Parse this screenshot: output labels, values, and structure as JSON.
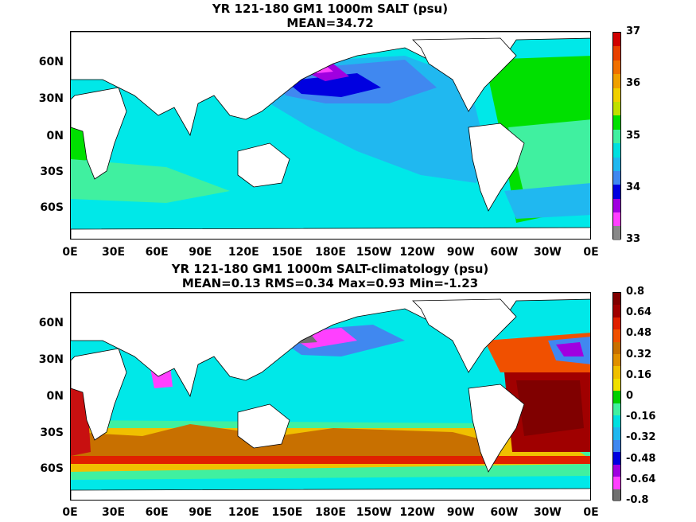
{
  "panel1": {
    "title": "YR 121-180 GM1 1000m SALT (psu)",
    "subtitle": "MEAN=34.72",
    "colorbar_labels": [
      "37",
      "36",
      "35",
      "34",
      "33"
    ],
    "colorbar_colors": [
      "#d00000",
      "#e84000",
      "#f07000",
      "#f0a000",
      "#f0d000",
      "#c0e000",
      "#00e000",
      "#40f0a0",
      "#00e0e0",
      "#20b8f0",
      "#4088f0",
      "#0000e0",
      "#a000e0",
      "#ff40ff",
      "#888888"
    ]
  },
  "panel2": {
    "title": "YR 121-180 GM1 1000m SALT-climatology (psu)",
    "subtitle": "MEAN=0.13   RMS=0.34   Max=0.93   Min=-1.23",
    "colorbar_labels": [
      "0.8",
      "0.64",
      "0.48",
      "0.32",
      "0.16",
      "0",
      "-0.16",
      "-0.32",
      "-0.48",
      "-0.64",
      "-0.8"
    ],
    "colorbar_colors": [
      "#800000",
      "#a00000",
      "#e02000",
      "#f05000",
      "#c87000",
      "#e09000",
      "#f0c000",
      "#f0e000",
      "#00d000",
      "#40f0a0",
      "#00e0e0",
      "#20b8f0",
      "#4088f0",
      "#0000e0",
      "#a000e0",
      "#ff40ff",
      "#707070"
    ]
  },
  "y_axis_labels": [
    "60N",
    "30N",
    "0N",
    "30S",
    "60S"
  ],
  "x_axis_labels": [
    "0E",
    "30E",
    "60E",
    "90E",
    "120E",
    "150E",
    "180E",
    "150W",
    "120W",
    "90W",
    "60W",
    "30W",
    "0E"
  ],
  "colors": {
    "ocean_cyan": "#00e8e8",
    "land": "#ffffff",
    "coast": "#000000"
  }
}
